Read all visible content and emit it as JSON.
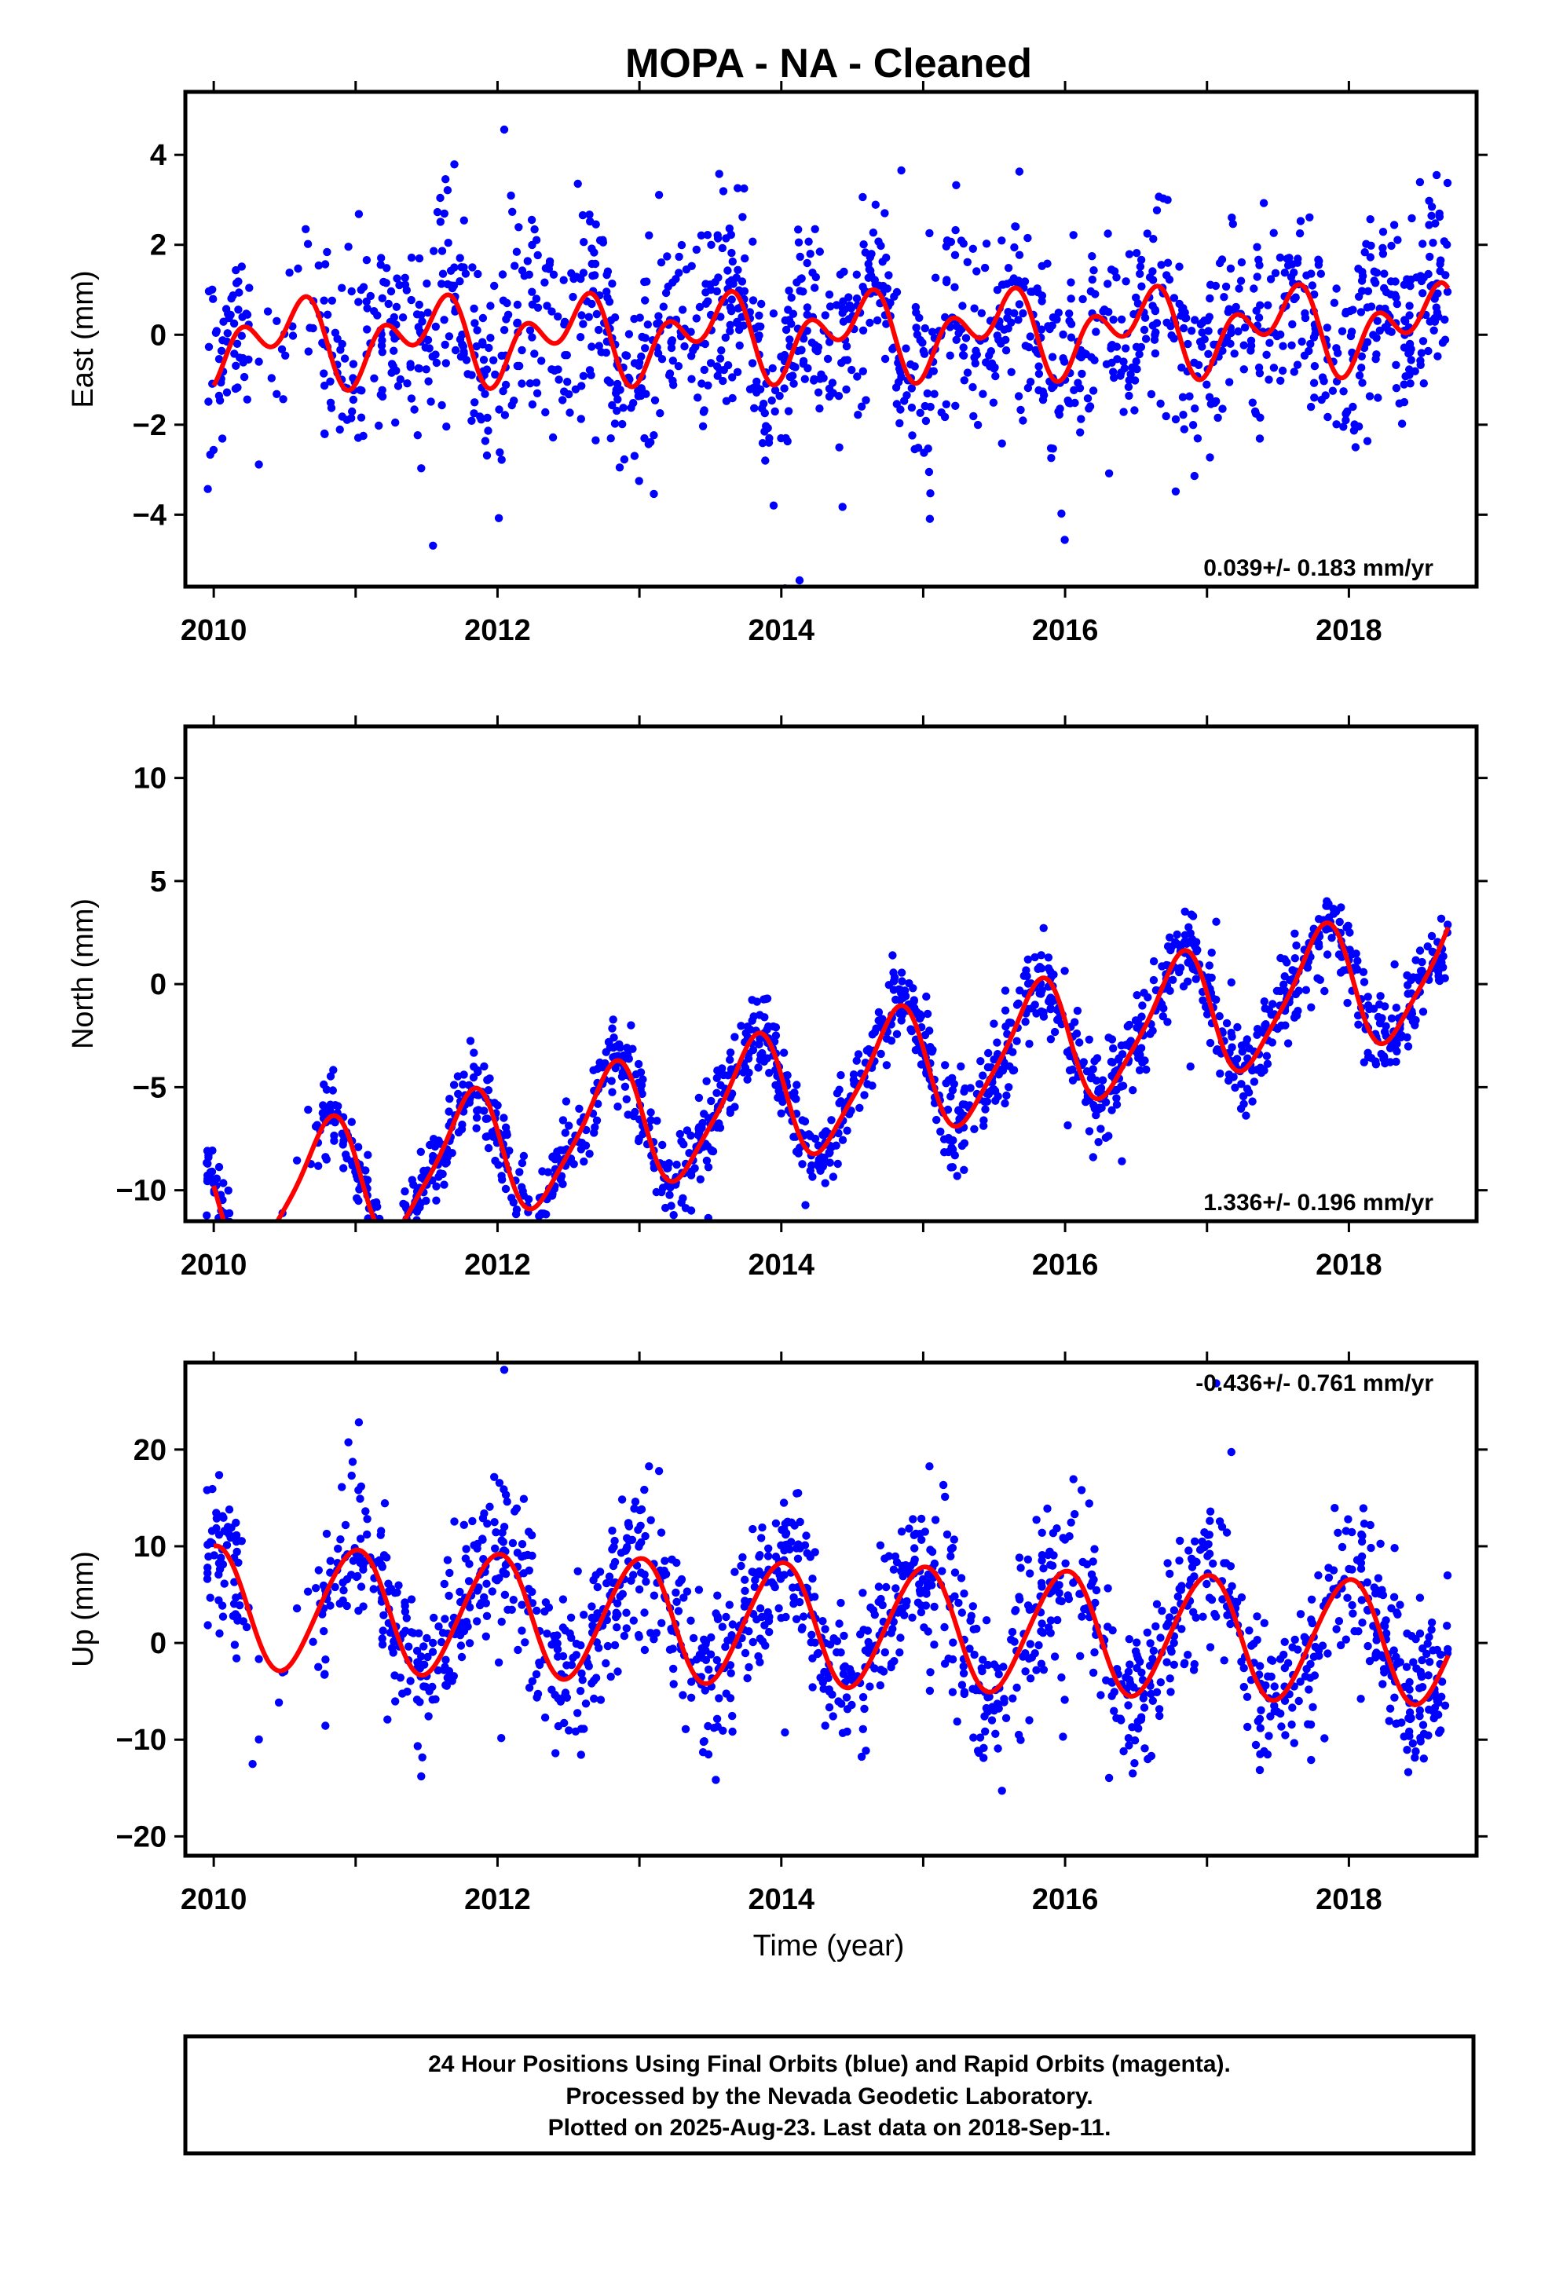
{
  "title": "MOPA  - NA - Cleaned",
  "xlabel": "Time (year)",
  "footer": {
    "line1": "24 Hour Positions Using Final Orbits (blue) and Rapid Orbits (magenta).",
    "line2": "Processed by the Nevada Geodetic Laboratory.",
    "line3": "Plotted on 2025-Aug-23. Last data on 2018-Sep-11."
  },
  "colors": {
    "points": "#0000ff",
    "fit": "#ff0000",
    "frame": "#000000"
  },
  "chart_data": [
    {
      "type": "scatter",
      "ylabel": "East (mm)",
      "rate": "0.039+/- 0.183 mm/yr",
      "xlim": [
        2009.8,
        2018.9
      ],
      "ylim": [
        -5.6,
        5.4
      ],
      "yticks": [
        4,
        2,
        0,
        -2,
        -4
      ],
      "ytick_labels": [
        "4",
        "2",
        "0",
        "−2",
        "−4"
      ],
      "xticks": [
        2010,
        2012,
        2014,
        2016,
        2018
      ],
      "xtick_labels": [
        "2010",
        "2012",
        "2014",
        "2016",
        "2018"
      ],
      "grid": false,
      "model": {
        "rate": 0.039,
        "annual_amp": 0.6,
        "annual_phase_days": 100,
        "semiannual_amp": 0.6,
        "semiannual_phase_days": 20,
        "offset": 0.0
      },
      "scatter_sd": 1.1,
      "n_points": 1600
    },
    {
      "type": "scatter",
      "ylabel": "North (mm)",
      "rate": "1.336+/- 0.196 mm/yr",
      "xlim": [
        2009.8,
        2018.9
      ],
      "ylim": [
        -11.5,
        12.5
      ],
      "yticks": [
        10,
        5,
        0,
        -5,
        -10
      ],
      "ytick_labels": [
        "10",
        "5",
        "0",
        "−5",
        "−10"
      ],
      "xticks": [
        2010,
        2012,
        2014,
        2016,
        2018
      ],
      "xtick_labels": [
        "2010",
        "2012",
        "2014",
        "2016",
        "2018"
      ],
      "grid": false,
      "model": {
        "rate": 1.336,
        "annual_amp": 3.0,
        "annual_phase_days": 200,
        "semiannual_amp": 0.6,
        "semiannual_phase_days": 100,
        "offset": -5.5
      },
      "scatter_sd": 1.0,
      "n_points": 1600
    },
    {
      "type": "scatter",
      "ylabel": "Up (mm)",
      "rate": "-0.436+/- 0.761 mm/yr",
      "xlim": [
        2009.8,
        2018.9
      ],
      "ylim": [
        -22,
        29
      ],
      "yticks": [
        20,
        10,
        0,
        -10,
        -20
      ],
      "ytick_labels": [
        "20",
        "10",
        "0",
        "−10",
        "−20"
      ],
      "xticks": [
        2010,
        2012,
        2014,
        2016,
        2018
      ],
      "xtick_labels": [
        "2010",
        "2012",
        "2014",
        "2016",
        "2018"
      ],
      "grid": false,
      "model": {
        "rate": -0.436,
        "annual_amp": 6.3,
        "annual_phase_days": 270,
        "semiannual_amp": 0.5,
        "semiannual_phase_days": 0,
        "offset": 2.0
      },
      "scatter_sd": 4.0,
      "n_points": 1600
    }
  ]
}
